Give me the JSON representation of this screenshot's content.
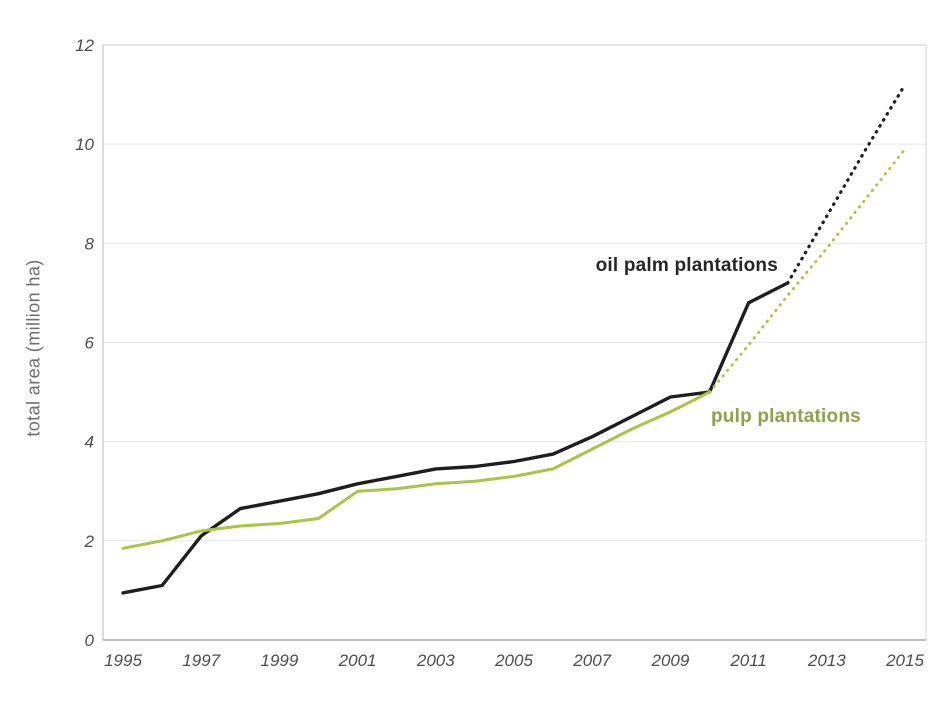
{
  "chart_data": {
    "type": "line",
    "title": "",
    "xlabel": "",
    "ylabel": "total area (million ha)",
    "xlim": [
      1995,
      2015
    ],
    "ylim": [
      0,
      12
    ],
    "x_ticks": [
      1995,
      1997,
      1999,
      2001,
      2003,
      2005,
      2007,
      2009,
      2011,
      2013,
      2015
    ],
    "y_ticks": [
      0,
      2,
      4,
      6,
      8,
      10,
      12
    ],
    "grid": "horizontal",
    "legend_position": "inline-annotations",
    "colors": {
      "oil_palm_line": "#1e1e1e",
      "oil_palm_label": "#262626",
      "pulp_line": "#a9c547",
      "pulp_label": "#8ea24c",
      "gridline": "#e8e8e8",
      "plot_border": "#dadada",
      "bottom_axis": "#b8b8b8",
      "left_axis": "#cfcfcf",
      "tick_text": "#4d4d4d",
      "axis_title_text": "#6e6e6e"
    },
    "series": [
      {
        "name": "oil palm plantations",
        "color": "#1e1e1e",
        "line_width": 3.4,
        "solid": {
          "years": [
            1995,
            1996,
            1997,
            1998,
            1999,
            2000,
            2001,
            2002,
            2003,
            2004,
            2005,
            2006,
            2007,
            2008,
            2009,
            2010,
            2011,
            2012
          ],
          "values": [
            0.95,
            1.1,
            2.1,
            2.65,
            2.8,
            2.95,
            3.15,
            3.3,
            3.45,
            3.5,
            3.6,
            3.75,
            4.1,
            4.5,
            4.9,
            5.0,
            6.8,
            7.2
          ]
        },
        "projection": {
          "style": "dotted",
          "years": [
            2012,
            2013,
            2014,
            2015
          ],
          "values": [
            7.2,
            8.55,
            9.9,
            11.2
          ]
        }
      },
      {
        "name": "pulp plantations",
        "color": "#a9c547",
        "line_width": 3.0,
        "solid": {
          "years": [
            1995,
            1996,
            1997,
            1998,
            1999,
            2000,
            2001,
            2002,
            2003,
            2004,
            2005,
            2006,
            2007,
            2008,
            2009,
            2010
          ],
          "values": [
            1.85,
            2.0,
            2.2,
            2.3,
            2.35,
            2.45,
            3.0,
            3.05,
            3.15,
            3.2,
            3.3,
            3.45,
            3.85,
            4.25,
            4.6,
            5.0
          ]
        },
        "projection": {
          "style": "dotted",
          "years": [
            2010,
            2011,
            2012,
            2013,
            2014,
            2015
          ],
          "values": [
            5.0,
            5.95,
            6.95,
            7.9,
            8.9,
            9.9
          ]
        }
      }
    ]
  }
}
